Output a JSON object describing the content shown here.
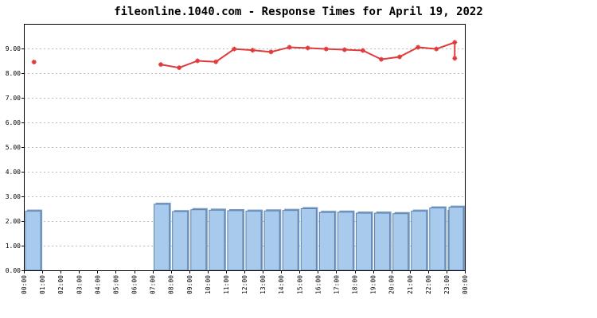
{
  "chart_data": {
    "type": "bar",
    "title": "fileonline.1040.com - Response Times for April 19, 2022",
    "xlabel": "",
    "ylabel": "",
    "ylim": [
      0,
      10
    ],
    "grid": true,
    "x_tick_labels": [
      "00:00",
      "01:00",
      "02:00",
      "03:00",
      "04:00",
      "05:00",
      "06:00",
      "07:00",
      "08:00",
      "09:00",
      "10:00",
      "11:00",
      "12:00",
      "13:00",
      "14:00",
      "15:00",
      "16:00",
      "17:00",
      "18:00",
      "19:00",
      "20:00",
      "21:00",
      "22:00",
      "23:00",
      "00:00"
    ],
    "y_tick_labels": [
      "0.00",
      "1.00",
      "2.00",
      "3.00",
      "4.00",
      "5.00",
      "6.00",
      "7.00",
      "8.00",
      "9.00"
    ],
    "y_ticks": [
      0,
      1,
      2,
      3,
      4,
      5,
      6,
      7,
      8,
      9
    ],
    "series": [
      {
        "type": "bar",
        "values": [
          2.4,
          null,
          null,
          null,
          null,
          null,
          null,
          2.68,
          2.38,
          2.46,
          2.44,
          2.42,
          2.4,
          2.41,
          2.43,
          2.5,
          2.35,
          2.36,
          2.32,
          2.32,
          2.3,
          2.4,
          2.53,
          2.44,
          2.56
        ]
      },
      {
        "type": "line",
        "values": [
          8.45,
          null,
          null,
          null,
          null,
          null,
          null,
          8.35,
          8.22,
          8.5,
          8.46,
          8.98,
          8.93,
          8.86,
          9.05,
          9.02,
          8.98,
          8.95,
          8.92,
          8.56,
          8.66,
          9.05,
          8.98,
          9.25,
          8.6
        ]
      }
    ],
    "colors": {
      "bar_fill": "#a8caec",
      "bar_stroke": "#5b82ad",
      "line": "#e03a3a",
      "grid": "#bbbbbb",
      "axis": "#000000"
    }
  }
}
